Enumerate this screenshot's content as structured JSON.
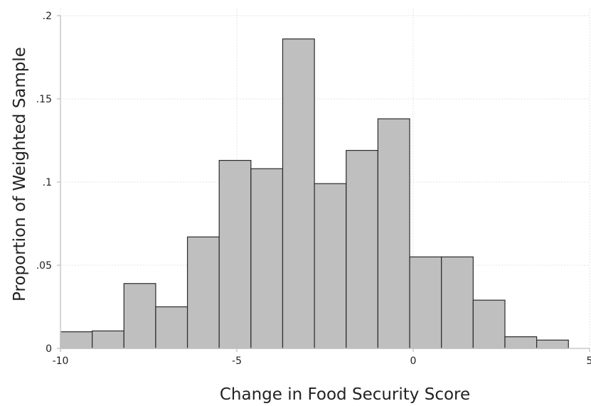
{
  "chart_data": {
    "type": "bar",
    "title": "",
    "xlabel": "Change in Food Security Score",
    "ylabel": "Proportion of Weighted Sample",
    "xlim": [
      -10,
      5
    ],
    "ylim": [
      0,
      0.2
    ],
    "x_ticks": [
      -10,
      -5,
      0,
      5
    ],
    "x_tick_labels": [
      "-10",
      "-5",
      "0",
      "5"
    ],
    "y_ticks": [
      0,
      0.05,
      0.1,
      0.15,
      0.2
    ],
    "y_tick_labels": [
      "0",
      ".05",
      ".1",
      ".15",
      ".2"
    ],
    "grid": true,
    "bins": [
      {
        "x0": -10.0,
        "x1": -9.1,
        "value": 0.01
      },
      {
        "x0": -9.1,
        "x1": -8.2,
        "value": 0.0105
      },
      {
        "x0": -8.2,
        "x1": -7.3,
        "value": 0.039
      },
      {
        "x0": -7.3,
        "x1": -6.4,
        "value": 0.025
      },
      {
        "x0": -6.4,
        "x1": -5.5,
        "value": 0.067
      },
      {
        "x0": -5.5,
        "x1": -4.6,
        "value": 0.113
      },
      {
        "x0": -4.6,
        "x1": -3.7,
        "value": 0.108
      },
      {
        "x0": -3.7,
        "x1": -2.8,
        "value": 0.186
      },
      {
        "x0": -2.8,
        "x1": -1.9,
        "value": 0.099
      },
      {
        "x0": -1.9,
        "x1": -1.0,
        "value": 0.119
      },
      {
        "x0": -1.0,
        "x1": -0.1,
        "value": 0.138
      },
      {
        "x0": -0.1,
        "x1": 0.8,
        "value": 0.055
      },
      {
        "x0": 0.8,
        "x1": 1.7,
        "value": 0.055
      },
      {
        "x0": 1.7,
        "x1": 2.6,
        "value": 0.029
      },
      {
        "x0": 2.6,
        "x1": 3.5,
        "value": 0.007
      },
      {
        "x0": 3.5,
        "x1": 4.4,
        "value": 0.005
      }
    ],
    "colors": {
      "bar_fill": "#bfbfbf",
      "bar_stroke": "#2b2b2b",
      "grid": "#e3e3e3",
      "axis": "#c8c8c8",
      "text": "#222222"
    }
  }
}
